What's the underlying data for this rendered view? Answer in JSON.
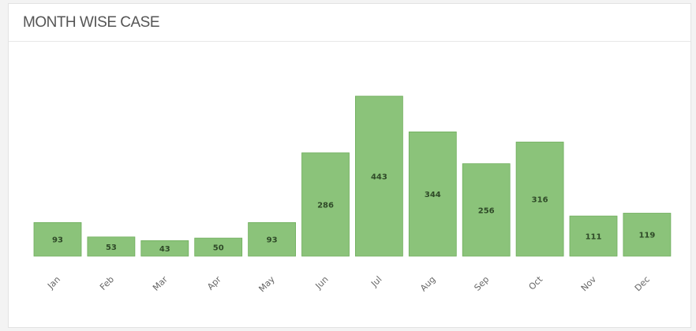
{
  "card": {
    "title": "MONTH WISE CASE"
  },
  "chart_data": {
    "type": "bar",
    "categories": [
      "Jan",
      "Feb",
      "Mar",
      "Apr",
      "May",
      "Jun",
      "Jul",
      "Aug",
      "Sep",
      "Oct",
      "Nov",
      "Dec"
    ],
    "values": [
      93,
      53,
      43,
      50,
      93,
      286,
      443,
      344,
      256,
      316,
      111,
      119
    ],
    "ylim": [
      0,
      480
    ],
    "grid": false,
    "legend": "none",
    "bar_color": "#8bc37a",
    "bar_border_color": "#6fae5c"
  }
}
